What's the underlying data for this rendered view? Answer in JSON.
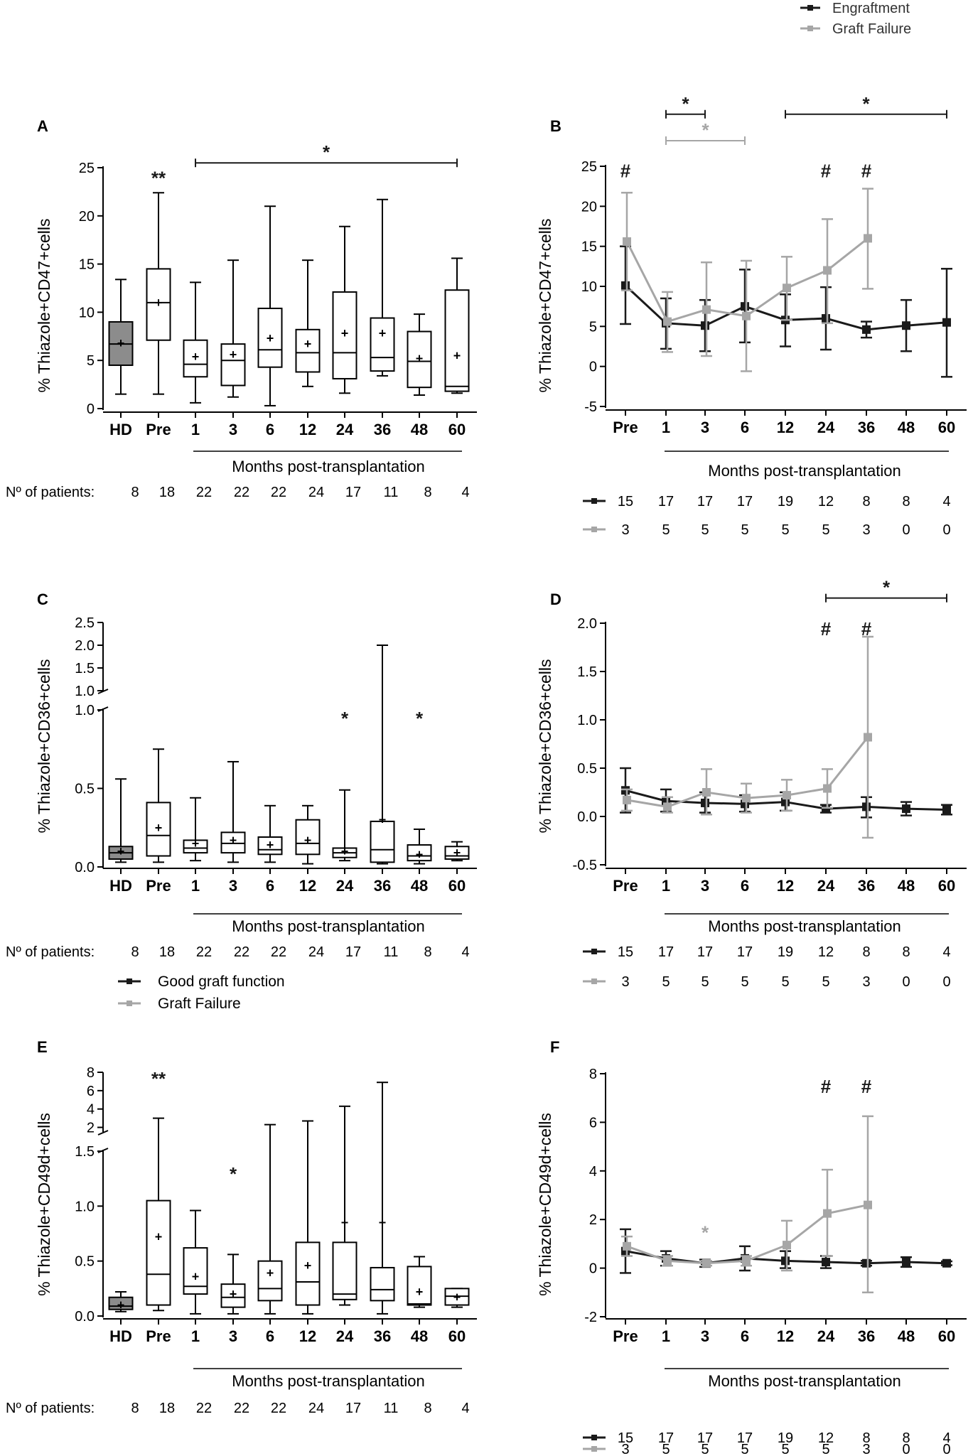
{
  "figure": {
    "top_legend": {
      "items": [
        {
          "label": "Engraftment",
          "color": "#1a1a1a"
        },
        {
          "label": "Graft Failure",
          "color": "#a6a6a6"
        }
      ]
    },
    "months_label": "Months post-transplantation",
    "patients_label": "Nº of patients:",
    "legend_cd": {
      "items": [
        {
          "label": "Good graft function",
          "color": "#1a1a1a"
        },
        {
          "label": "Graft Failure",
          "color": "#a6a6a6"
        }
      ]
    },
    "colors": {
      "engraftment": "#1a1a1a",
      "failure": "#a6a6a6",
      "hd_fill": "#8c8c8c"
    }
  },
  "chart_data": [
    {
      "id": "A",
      "type": "box",
      "ylabel": "% Thiazole+CD47+cells",
      "categories": [
        "HD",
        "Pre",
        "1",
        "3",
        "6",
        "12",
        "24",
        "36",
        "48",
        "60"
      ],
      "ylim": [
        0,
        25
      ],
      "yticks": [
        "0",
        "5",
        "10",
        "15",
        "20",
        "25"
      ],
      "boxes": [
        {
          "min": 1.5,
          "q1": 4.5,
          "median": 6.7,
          "q3": 9,
          "max": 13.4,
          "mean": 6.8,
          "fill": true
        },
        {
          "min": 1.5,
          "q1": 7.1,
          "median": 11,
          "q3": 14.5,
          "max": 22.4,
          "mean": 11
        },
        {
          "min": 0.6,
          "q1": 3.3,
          "median": 4.6,
          "q3": 7.1,
          "max": 13.1,
          "mean": 5.4
        },
        {
          "min": 1.2,
          "q1": 2.4,
          "median": 5,
          "q3": 6.7,
          "max": 15.4,
          "mean": 5.6
        },
        {
          "min": 0.3,
          "q1": 4.3,
          "median": 6.1,
          "q3": 10.4,
          "max": 21,
          "mean": 7.3
        },
        {
          "min": 2.3,
          "q1": 3.8,
          "median": 5.8,
          "q3": 8.2,
          "max": 15.4,
          "mean": 6.7
        },
        {
          "min": 1.6,
          "q1": 3.1,
          "median": 5.8,
          "q3": 12.1,
          "max": 18.9,
          "mean": 7.8
        },
        {
          "min": 3.4,
          "q1": 3.9,
          "median": 5.3,
          "q3": 9.4,
          "max": 21.7,
          "mean": 7.8
        },
        {
          "min": 1.4,
          "q1": 2.2,
          "median": 4.9,
          "q3": 8,
          "max": 9.8,
          "mean": 5.2
        },
        {
          "min": 1.6,
          "q1": 1.8,
          "median": 2.3,
          "q3": 12.3,
          "max": 15.6,
          "mean": 5.5
        }
      ],
      "annotations": [
        {
          "text": "**",
          "type": "marker",
          "x_index": 1,
          "y": 24
        },
        {
          "text": "*",
          "type": "bracket",
          "from": 2,
          "to": 9,
          "y": 25.5
        }
      ],
      "patients": [
        "8",
        "18",
        "22",
        "22",
        "22",
        "24",
        "17",
        "11",
        "8",
        "4"
      ]
    },
    {
      "id": "B",
      "type": "line",
      "ylabel": "% Thiazole+CD47+cells",
      "categories": [
        "Pre",
        "1",
        "3",
        "6",
        "12",
        "24",
        "36",
        "48",
        "60"
      ],
      "ylim": [
        -5,
        25
      ],
      "yticks": [
        "-5",
        "0",
        "5",
        "10",
        "15",
        "20",
        "25"
      ],
      "series": [
        {
          "name": "Engraftment",
          "values": [
            10.1,
            5.4,
            5.1,
            7.5,
            5.8,
            6,
            4.6,
            5.1,
            5.5
          ],
          "errors": [
            [
              5.3,
              15
            ],
            [
              2.2,
              8.5
            ],
            [
              1.9,
              8.3
            ],
            [
              3,
              12.1
            ],
            [
              2.5,
              9
            ],
            [
              2.1,
              9.9
            ],
            [
              3.6,
              5.6
            ],
            [
              1.9,
              8.3
            ],
            [
              -1.3,
              12.2
            ]
          ]
        },
        {
          "name": "Graft Failure",
          "values": [
            15.6,
            5.6,
            7.1,
            6.3,
            9.8,
            12,
            16,
            null,
            null
          ],
          "errors": [
            [
              9.5,
              21.7
            ],
            [
              1.8,
              9.3
            ],
            [
              1.3,
              13
            ],
            [
              -0.6,
              13.2
            ],
            [
              5.8,
              13.7
            ],
            [
              5.4,
              18.4
            ],
            [
              9.7,
              22.2
            ],
            null,
            null
          ]
        }
      ],
      "annotations": [
        {
          "text": "#",
          "type": "marker",
          "x_index": 0,
          "y": 24.5
        },
        {
          "text": "#",
          "type": "marker",
          "x_index": 5,
          "y": 24.5
        },
        {
          "text": "#",
          "type": "marker",
          "x_index": 6,
          "y": 24.5
        },
        {
          "text": "*",
          "type": "bracket",
          "from": 1,
          "to": 2,
          "y": 31.5,
          "series": 0
        },
        {
          "text": "*",
          "type": "bracket",
          "from": 4,
          "to": 8,
          "y": 31.5,
          "series": 0
        },
        {
          "text": "*",
          "type": "bracket",
          "from": 1,
          "to": 3,
          "y": 28.2,
          "series": 1
        }
      ],
      "patients": [
        [
          "15",
          "17",
          "17",
          "17",
          "19",
          "12",
          "8",
          "8",
          "4"
        ],
        [
          "3",
          "5",
          "5",
          "5",
          "5",
          "5",
          "3",
          "0",
          "0"
        ]
      ]
    },
    {
      "id": "C",
      "type": "box",
      "ylabel": "% Thiazole+CD36+cells",
      "categories": [
        "HD",
        "Pre",
        "1",
        "3",
        "6",
        "12",
        "24",
        "36",
        "48",
        "60"
      ],
      "broken_axis": {
        "lower": [
          0,
          1
        ],
        "upper": [
          1,
          2.5
        ]
      },
      "yticks_lower": [
        "0.0",
        "0.5",
        "1.0"
      ],
      "yticks_upper": [
        "1.0",
        "1.5",
        "2.0",
        "2.5"
      ],
      "boxes": [
        {
          "min": 0.03,
          "q1": 0.05,
          "median": 0.09,
          "q3": 0.13,
          "max": 0.56,
          "mean": 0.1,
          "fill": true
        },
        {
          "min": 0.03,
          "q1": 0.07,
          "median": 0.2,
          "q3": 0.41,
          "max": 0.75,
          "mean": 0.25
        },
        {
          "min": 0.04,
          "q1": 0.09,
          "median": 0.12,
          "q3": 0.17,
          "max": 0.44,
          "mean": 0.15
        },
        {
          "min": 0.03,
          "q1": 0.09,
          "median": 0.15,
          "q3": 0.22,
          "max": 0.67,
          "mean": 0.17
        },
        {
          "min": 0.03,
          "q1": 0.08,
          "median": 0.11,
          "q3": 0.19,
          "max": 0.39,
          "mean": 0.14
        },
        {
          "min": 0.02,
          "q1": 0.08,
          "median": 0.15,
          "q3": 0.3,
          "max": 0.39,
          "mean": 0.17
        },
        {
          "min": 0.04,
          "q1": 0.06,
          "median": 0.09,
          "q3": 0.12,
          "max": 0.49,
          "mean": 0.1
        },
        {
          "min": 0.02,
          "q1": 0.03,
          "median": 0.11,
          "q3": 0.29,
          "max": 2.0,
          "mean": 0.3
        },
        {
          "min": 0.02,
          "q1": 0.04,
          "median": 0.07,
          "q3": 0.14,
          "max": 0.24,
          "mean": 0.08
        },
        {
          "min": 0.04,
          "q1": 0.05,
          "median": 0.07,
          "q3": 0.13,
          "max": 0.16,
          "mean": 0.09
        }
      ],
      "annotations": [
        {
          "text": "*",
          "type": "marker",
          "x_index": 6,
          "y": 0.95
        },
        {
          "text": "*",
          "type": "marker",
          "x_index": 8,
          "y": 0.95
        }
      ],
      "patients": [
        "8",
        "18",
        "22",
        "22",
        "22",
        "24",
        "17",
        "11",
        "8",
        "4"
      ]
    },
    {
      "id": "D",
      "type": "line",
      "ylabel": "% Thiazole+CD36+cells",
      "categories": [
        "Pre",
        "1",
        "3",
        "6",
        "12",
        "24",
        "36",
        "48",
        "60"
      ],
      "ylim": [
        -0.5,
        2.0
      ],
      "yticks": [
        "-0.5",
        "0.0",
        "0.5",
        "1.0",
        "1.5",
        "2.0"
      ],
      "series": [
        {
          "name": "Engraftment",
          "values": [
            0.27,
            0.16,
            0.14,
            0.13,
            0.15,
            0.08,
            0.1,
            0.08,
            0.07
          ],
          "errors": [
            [
              0.04,
              0.5
            ],
            [
              0.05,
              0.28
            ],
            [
              0.04,
              0.25
            ],
            [
              0.05,
              0.22
            ],
            [
              0.06,
              0.25
            ],
            [
              0.04,
              0.12
            ],
            [
              -0.01,
              0.2
            ],
            [
              0.01,
              0.15
            ],
            [
              0.02,
              0.12
            ]
          ]
        },
        {
          "name": "Graft Failure",
          "values": [
            0.17,
            0.1,
            0.25,
            0.19,
            0.22,
            0.29,
            0.82,
            null,
            null
          ],
          "errors": [
            [
              0.06,
              0.28
            ],
            [
              0.04,
              0.2
            ],
            [
              0.02,
              0.49
            ],
            [
              0.04,
              0.34
            ],
            [
              0.06,
              0.38
            ],
            [
              0.09,
              0.49
            ],
            [
              -0.22,
              1.86
            ],
            null,
            null
          ]
        }
      ],
      "annotations": [
        {
          "text": "#",
          "type": "marker",
          "x_index": 5,
          "y": 1.95
        },
        {
          "text": "#",
          "type": "marker",
          "x_index": 6,
          "y": 1.95
        },
        {
          "text": "*",
          "type": "bracket",
          "from": 5,
          "to": 8,
          "y": 2.26,
          "series": 0
        }
      ],
      "patients": [
        [
          "15",
          "17",
          "17",
          "17",
          "19",
          "12",
          "8",
          "8",
          "4"
        ],
        [
          "3",
          "5",
          "5",
          "5",
          "5",
          "5",
          "3",
          "0",
          "0"
        ]
      ]
    },
    {
      "id": "E",
      "type": "box",
      "ylabel": "% Thiazole+CD49d+cells",
      "categories": [
        "HD",
        "Pre",
        "1",
        "3",
        "6",
        "12",
        "24",
        "36",
        "48",
        "60"
      ],
      "broken_axis": {
        "lower": [
          0,
          1.5
        ],
        "upper": [
          1.5,
          8
        ]
      },
      "yticks_lower": [
        "0.0",
        "0.5",
        "1.0",
        "1.5"
      ],
      "yticks_upper": [
        "2",
        "4",
        "6",
        "8"
      ],
      "boxes": [
        {
          "min": 0.04,
          "q1": 0.06,
          "median": 0.09,
          "q3": 0.17,
          "max": 0.22,
          "mean": 0.1,
          "fill": true
        },
        {
          "min": 0.05,
          "q1": 0.1,
          "median": 0.38,
          "q3": 1.05,
          "max": 3.0,
          "mean": 0.72
        },
        {
          "min": 0.02,
          "q1": 0.2,
          "median": 0.27,
          "q3": 0.62,
          "max": 0.96,
          "mean": 0.36
        },
        {
          "min": 0.02,
          "q1": 0.08,
          "median": 0.17,
          "q3": 0.29,
          "max": 0.56,
          "mean": 0.2
        },
        {
          "min": 0.02,
          "q1": 0.14,
          "median": 0.25,
          "q3": 0.5,
          "max": 2.3,
          "mean": 0.39
        },
        {
          "min": 0.02,
          "q1": 0.1,
          "median": 0.31,
          "q3": 0.67,
          "max": 2.7,
          "mean": 0.46
        },
        {
          "min": 0.1,
          "q1": 0.15,
          "median": 0.2,
          "q3": 0.67,
          "max": 4.3,
          "mean": 0.85
        },
        {
          "min": 0.02,
          "q1": 0.14,
          "median": 0.24,
          "q3": 0.44,
          "max": 6.9,
          "mean": 0.85
        },
        {
          "min": 0.08,
          "q1": 0.1,
          "median": 0.11,
          "q3": 0.45,
          "max": 0.54,
          "mean": 0.22
        },
        {
          "min": 0.08,
          "q1": 0.1,
          "median": 0.18,
          "q3": 0.25,
          "max": 0.25,
          "mean": 0.17
        }
      ],
      "annotations": [
        {
          "text": "**",
          "type": "marker",
          "x_index": 1,
          "y": 7.4
        },
        {
          "text": "*",
          "type": "marker",
          "x_index": 3,
          "y": 1.3
        }
      ],
      "patients": [
        "8",
        "18",
        "22",
        "22",
        "22",
        "24",
        "17",
        "11",
        "8",
        "4"
      ]
    },
    {
      "id": "F",
      "type": "line",
      "ylabel": "% Thiazole+CD49d+cells",
      "categories": [
        "Pre",
        "1",
        "3",
        "6",
        "12",
        "24",
        "36",
        "48",
        "60"
      ],
      "ylim": [
        -2,
        8
      ],
      "yticks": [
        "-2",
        "0",
        "2",
        "4",
        "6",
        "8"
      ],
      "series": [
        {
          "name": "Engraftment",
          "values": [
            0.7,
            0.4,
            0.2,
            0.4,
            0.3,
            0.25,
            0.2,
            0.25,
            0.2
          ],
          "errors": [
            [
              -0.2,
              1.6
            ],
            [
              0.1,
              0.7
            ],
            [
              0.05,
              0.35
            ],
            [
              -0.1,
              0.9
            ],
            [
              0,
              0.7
            ],
            [
              0,
              0.5
            ],
            [
              0.1,
              0.3
            ],
            [
              0.05,
              0.45
            ],
            [
              0.12,
              0.28
            ]
          ]
        },
        {
          "name": "Graft Failure",
          "values": [
            0.9,
            0.3,
            0.2,
            0.3,
            0.95,
            2.25,
            2.6,
            null,
            null
          ],
          "errors": [
            [
              0.5,
              1.3
            ],
            [
              0.1,
              0.5
            ],
            [
              0.1,
              0.3
            ],
            [
              0.1,
              0.5
            ],
            [
              -0.1,
              1.95
            ],
            [
              0.5,
              4.05
            ],
            [
              -1.0,
              6.25
            ],
            null,
            null
          ]
        }
      ],
      "annotations": [
        {
          "text": "#",
          "type": "marker",
          "x_index": 5,
          "y": 7.5
        },
        {
          "text": "#",
          "type": "marker",
          "x_index": 6,
          "y": 7.5
        },
        {
          "text": "*",
          "type": "marker",
          "x_index": 2,
          "y": 1.5,
          "series": 1
        }
      ],
      "patients": [
        [
          "15",
          "17",
          "17",
          "17",
          "19",
          "12",
          "8",
          "8",
          "4"
        ],
        [
          "3",
          "5",
          "5",
          "5",
          "5",
          "5",
          "3",
          "0",
          "0"
        ]
      ]
    }
  ]
}
